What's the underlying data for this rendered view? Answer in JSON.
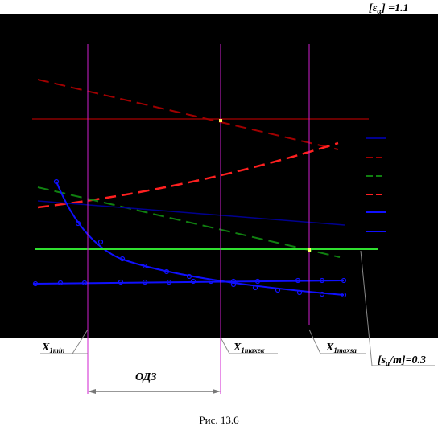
{
  "annotations": {
    "epsilon": {
      "pre": "[ε",
      "sub": "α",
      "post": "] =1.1"
    },
    "x1min": {
      "main": "X",
      "sub": "1min"
    },
    "x1max_eps": {
      "main": "X",
      "sub": "1maxεα"
    },
    "x1max_sa": {
      "main": "X",
      "sub": "1maxsa"
    },
    "sa_m": {
      "pre": "[s",
      "sub": "a",
      "post": "/m]=0.3"
    },
    "odz": "ОДЗ"
  },
  "caption": "Рис. 13.6"
}
